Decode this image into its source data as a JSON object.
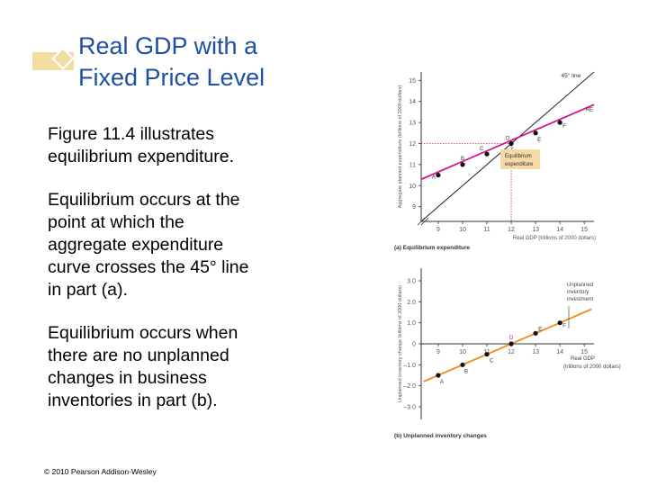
{
  "title": {
    "line1": "Real GDP with a",
    "line2": "Fixed Price Level"
  },
  "bullets": [
    [
      "Figure 11.4 illustrates",
      "equilibrium expenditure."
    ],
    [
      "Equilibrium occurs at the",
      "point at which the",
      "aggregate expenditure",
      "curve crosses the 45° line",
      "in part (a)."
    ],
    [
      "Equilibrium occurs when",
      "there are no unplanned",
      "changes in business",
      "inventories in part (b)."
    ]
  ],
  "copyright": "© 2010 Pearson Addison-Wesley",
  "colors": {
    "title": "#1f4fa0",
    "ae_line": "#d6178e",
    "line45": "#222222",
    "inventory_line": "#f08a1c",
    "dotted_guide": "#d6178e",
    "label_box": "#f6d9a6",
    "deco_band": "#f3dca2"
  },
  "chart_data": [
    {
      "type": "line",
      "caption": "(a) Equilibrium expenditure",
      "xlabel": "Real GDP (trillions of 2000 dollars)",
      "ylabel": "Aggregate planned expenditure (trillions of 2000 dollars)",
      "xlim": [
        8.3,
        15.4
      ],
      "ylim": [
        8.3,
        15.4
      ],
      "x_ticks": [
        9,
        10,
        11,
        12,
        13,
        14,
        15
      ],
      "y_ticks": [
        9,
        10,
        11,
        12,
        13,
        14,
        15
      ],
      "tick_labels_x": [
        "9",
        "10",
        "11",
        "12",
        "13",
        "14",
        "15"
      ],
      "tick_labels_y": [
        "9",
        "10",
        "11",
        "12",
        "13",
        "14",
        "15"
      ],
      "axis_break": true,
      "series": [
        {
          "name": "45° line",
          "x": [
            8.3,
            15.4
          ],
          "y": [
            8.3,
            15.4
          ]
        },
        {
          "name": "AE",
          "x": [
            8.3,
            15.4
          ],
          "y": [
            10.3,
            13.85
          ]
        }
      ],
      "points": [
        {
          "label": "A",
          "x": 9,
          "y": 10.5
        },
        {
          "label": "B",
          "x": 10,
          "y": 11
        },
        {
          "label": "C",
          "x": 11,
          "y": 11.5
        },
        {
          "label": "D",
          "x": 12,
          "y": 12
        },
        {
          "label": "E",
          "x": 13,
          "y": 12.5
        },
        {
          "label": "F",
          "x": 14,
          "y": 13
        }
      ],
      "guide": {
        "x": 12,
        "y": 12
      },
      "annotation": "Equilibrium expenditure",
      "annotation_lines": [
        "Equilibrium",
        "expenditure"
      ]
    },
    {
      "type": "line",
      "caption": "(b) Unplanned inventory changes",
      "xlabel_lines": [
        "Real GDP",
        "(trillions of 2000 dollars)"
      ],
      "ylabel": "Unplanned inventory change (trillions of 2000 dollars)",
      "xlim": [
        8.3,
        15.4
      ],
      "ylim": [
        -3.6,
        3.6
      ],
      "x_ticks": [
        9,
        10,
        11,
        12,
        13,
        14,
        15
      ],
      "y_ticks": [
        3,
        2,
        1,
        0,
        -1,
        -2,
        -3
      ],
      "tick_labels_x": [
        "9",
        "10",
        "11",
        "12",
        "13",
        "14",
        "15"
      ],
      "tick_labels_y": [
        "3.0",
        "2.0",
        "1.0",
        "0",
        "–1.0",
        "–2.0",
        "–3.0"
      ],
      "series": [
        {
          "x": [
            8.4,
            15.3
          ],
          "y": [
            -1.8,
            1.65
          ]
        }
      ],
      "points": [
        {
          "label": "A",
          "x": 9,
          "y": -1.5
        },
        {
          "label": "B",
          "x": 10,
          "y": -1
        },
        {
          "label": "C",
          "x": 11,
          "y": -0.5
        },
        {
          "label": "D",
          "x": 12,
          "y": 0
        },
        {
          "label": "E",
          "x": 13,
          "y": 0.5
        },
        {
          "label": "F",
          "x": 14,
          "y": 1
        }
      ],
      "annotation_lines": [
        "Unplanned",
        "inventory",
        "investment"
      ]
    }
  ]
}
